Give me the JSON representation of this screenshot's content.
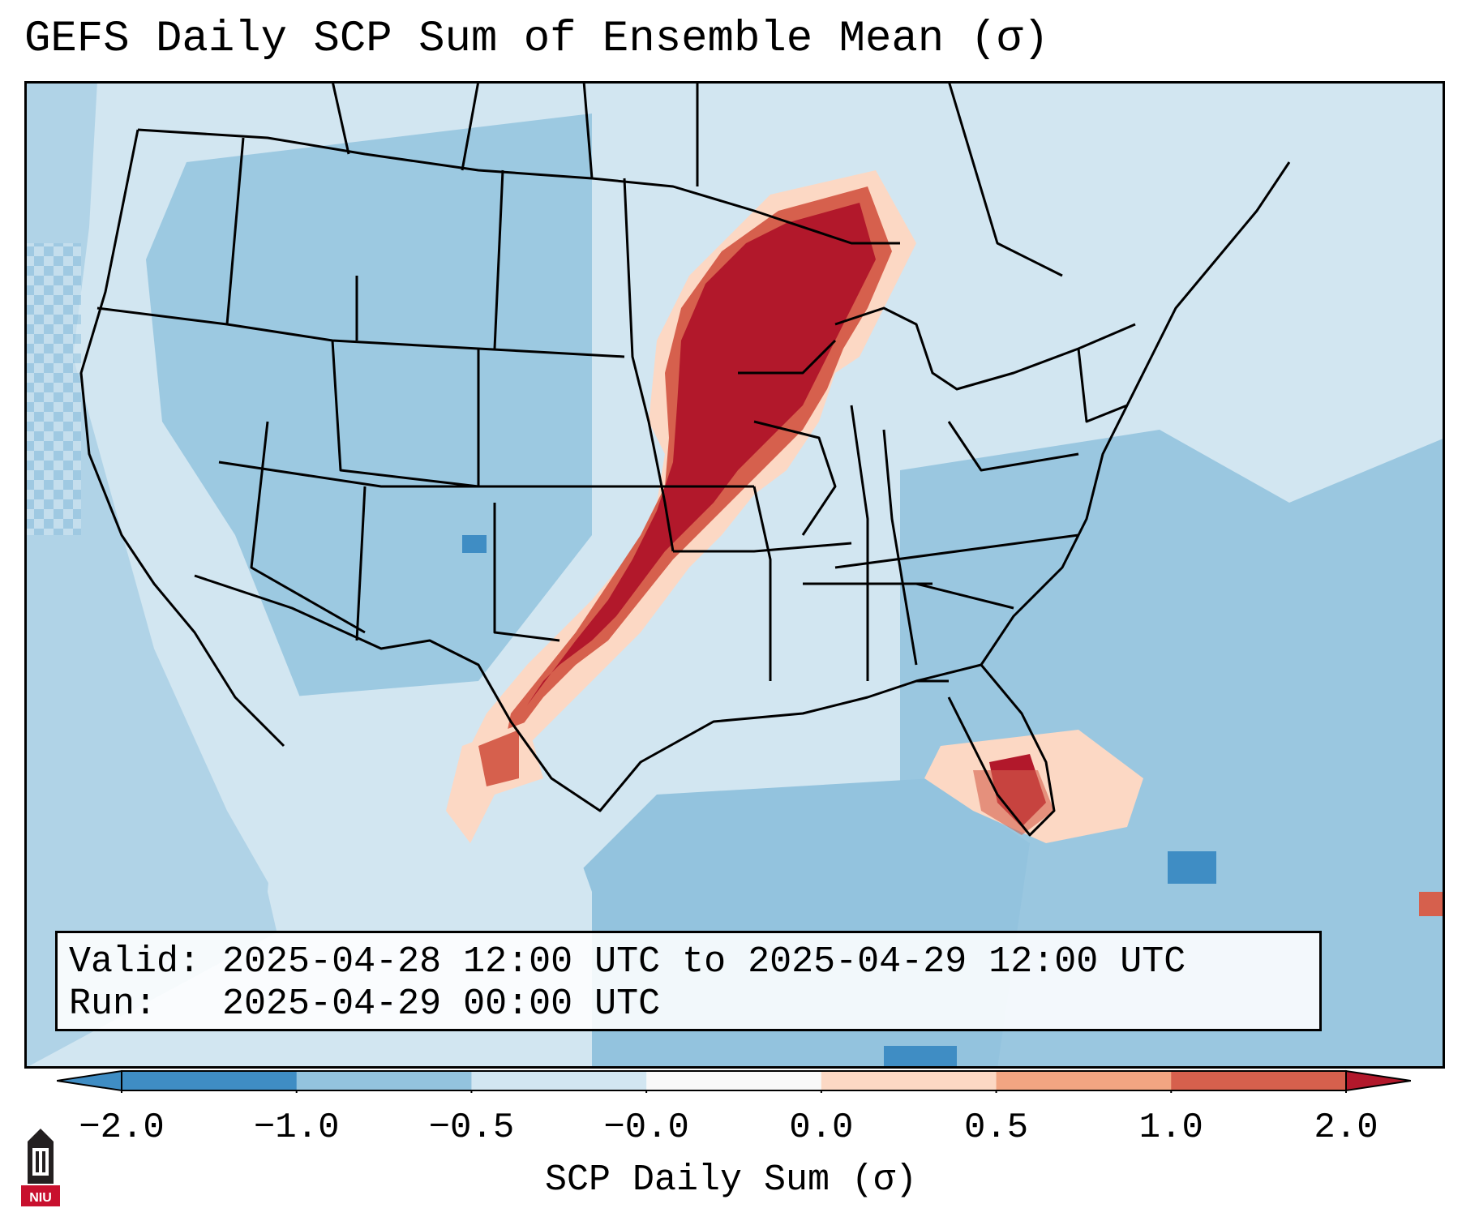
{
  "title": "GEFS Daily SCP Sum of Ensemble Mean (σ)",
  "info": {
    "valid_label": "Valid:",
    "valid_value": "2025-04-28 12:00 UTC to 2025-04-29 12:00 UTC",
    "run_label": "Run:",
    "run_value": "2025-04-29 00:00 UTC"
  },
  "colorbar": {
    "title": "SCP Daily Sum (σ)",
    "tick_labels": [
      "−2.0",
      "−1.0",
      "−0.5",
      "−0.0",
      "0.0",
      "0.5",
      "1.0",
      "2.0"
    ],
    "colors": [
      "#3f8dc4",
      "#93c3de",
      "#d2e6f1",
      "#f8f8f8",
      "#fcd8c4",
      "#f2a582",
      "#d6604d",
      "#b2182b"
    ],
    "extend": "both"
  },
  "map": {
    "background_color": "#d2e6f1",
    "ocean_color": "#93c3de",
    "high_color": "#b2182b",
    "anomaly_regions": [
      {
        "region": "Upper Midwest to Oklahoma/Texas axis",
        "value_sigma": 2.0
      },
      {
        "region": "Central Florida",
        "value_sigma": 1.0
      },
      {
        "region": "South Texas",
        "value_sigma": 1.0
      }
    ]
  },
  "logo": {
    "label": "NIU",
    "icon": "niu-tower-logo-icon",
    "color": "#c8102e"
  }
}
